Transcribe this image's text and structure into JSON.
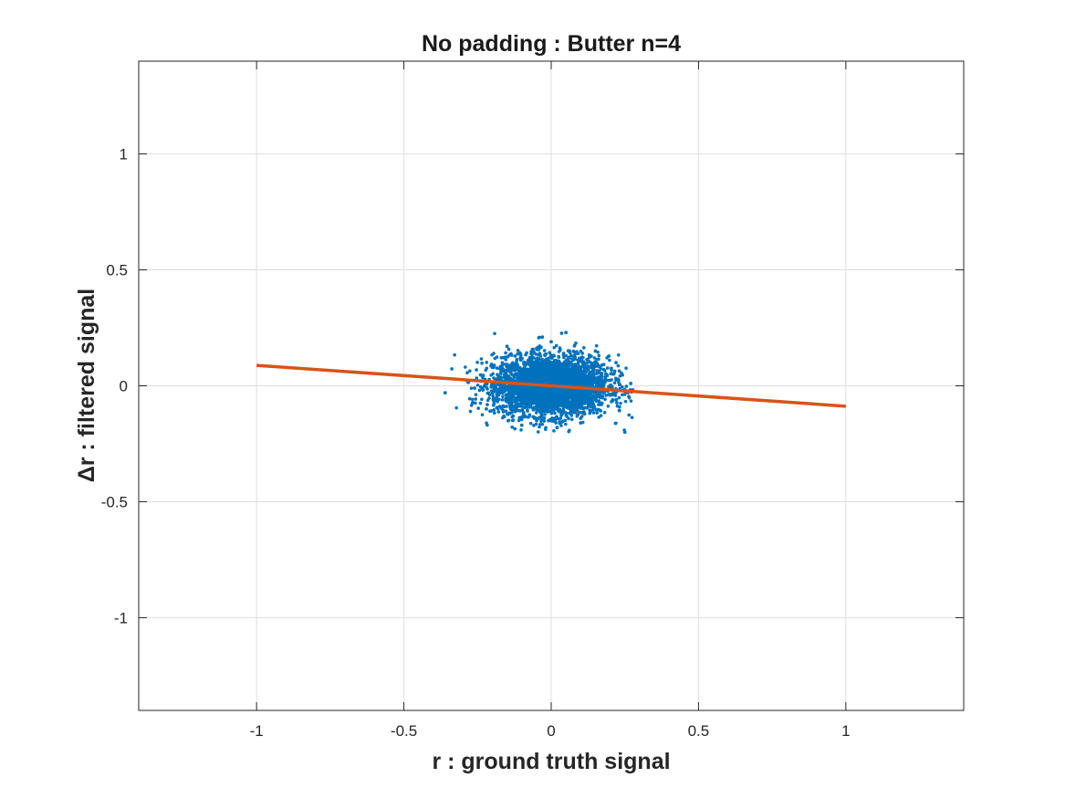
{
  "chart_data": {
    "type": "scatter",
    "title": "No padding : Butter n=4",
    "xlabel": "r : ground truth signal",
    "ylabel": "Δr : filtered signal",
    "xlim": [
      -1.4,
      1.4
    ],
    "ylim": [
      -1.4,
      1.4
    ],
    "xticks": [
      -1,
      -0.5,
      0,
      0.5,
      1
    ],
    "xtick_labels": [
      "-1",
      "-0.5",
      "0",
      "0.5",
      "1"
    ],
    "yticks": [
      -1,
      -0.5,
      0,
      0.5,
      1
    ],
    "ytick_labels": [
      "-1",
      "-0.5",
      "0",
      "0.5",
      "1"
    ],
    "grid": true,
    "series": [
      {
        "kind": "scatter",
        "color": "#0072BD",
        "cloud_center": [
          0.0,
          0.0
        ],
        "cloud_x_range": [
          -0.35,
          0.28
        ],
        "cloud_y_range": [
          -0.2,
          0.23
        ],
        "sample_points": [
          [
            -0.36,
            -0.03
          ],
          [
            0.05,
            0.23
          ],
          [
            -0.03,
            0.21
          ],
          [
            0.25,
            -0.2
          ],
          [
            -0.28,
            0.02
          ],
          [
            -0.26,
            -0.01
          ],
          [
            0.27,
            0.01
          ],
          [
            0.26,
            -0.03
          ],
          [
            -0.15,
            0.17
          ],
          [
            0.15,
            0.15
          ],
          [
            -0.1,
            -0.17
          ],
          [
            0.1,
            -0.16
          ],
          [
            0.22,
            0.1
          ],
          [
            -0.22,
            -0.1
          ],
          [
            0.0,
            0.19
          ],
          [
            0.02,
            -0.18
          ]
        ]
      },
      {
        "kind": "line",
        "color": "#D95319",
        "x": [
          -1,
          1
        ],
        "y": [
          0.088,
          -0.088
        ]
      }
    ]
  }
}
